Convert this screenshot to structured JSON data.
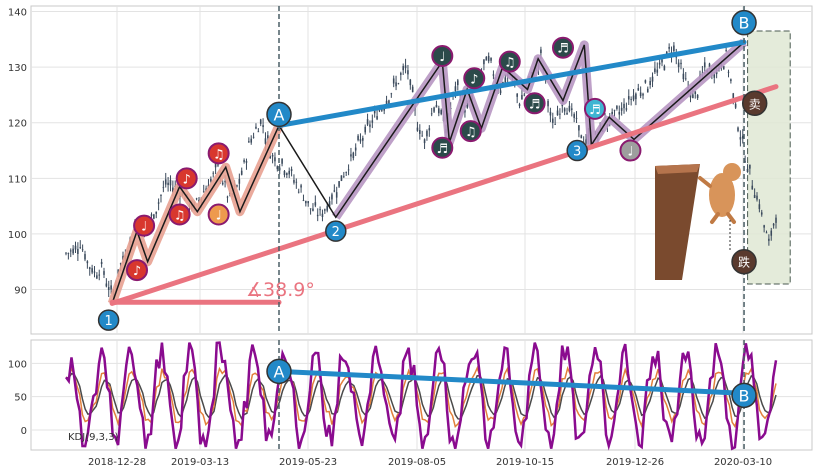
{
  "chart_data": [
    {
      "type": "candlestick",
      "panel": "price",
      "y_ticks": [
        90,
        100,
        110,
        120,
        130,
        140
      ],
      "ylim": [
        82,
        141
      ],
      "x_ticks": [
        "2018-12-28",
        "2019-03-13",
        "2019-05-23",
        "2019-08-05",
        "2019-10-15",
        "2019-12-26",
        "2020-03-10"
      ],
      "price_series": [
        {
          "t": 0.0,
          "v": 96.5
        },
        {
          "t": 0.01,
          "v": 97.0
        },
        {
          "t": 0.02,
          "v": 98.5
        },
        {
          "t": 0.03,
          "v": 95.0
        },
        {
          "t": 0.04,
          "v": 93.0
        },
        {
          "t": 0.05,
          "v": 94.0
        },
        {
          "t": 0.06,
          "v": 90.5
        },
        {
          "t": 0.065,
          "v": 88.5
        },
        {
          "t": 0.075,
          "v": 94.0
        },
        {
          "t": 0.09,
          "v": 98.0
        },
        {
          "t": 0.1,
          "v": 102.0
        },
        {
          "t": 0.11,
          "v": 100.0
        },
        {
          "t": 0.125,
          "v": 104.0
        },
        {
          "t": 0.14,
          "v": 109.0
        },
        {
          "t": 0.16,
          "v": 108.0
        },
        {
          "t": 0.18,
          "v": 104.5
        },
        {
          "t": 0.2,
          "v": 109.0
        },
        {
          "t": 0.215,
          "v": 112.0
        },
        {
          "t": 0.23,
          "v": 106.0
        },
        {
          "t": 0.245,
          "v": 109.5
        },
        {
          "t": 0.26,
          "v": 117.0
        },
        {
          "t": 0.275,
          "v": 120.5
        },
        {
          "t": 0.29,
          "v": 114.0
        },
        {
          "t": 0.31,
          "v": 112.0
        },
        {
          "t": 0.33,
          "v": 108.0
        },
        {
          "t": 0.345,
          "v": 104.5
        },
        {
          "t": 0.36,
          "v": 103.5
        },
        {
          "t": 0.38,
          "v": 108.0
        },
        {
          "t": 0.4,
          "v": 113.0
        },
        {
          "t": 0.42,
          "v": 118.0
        },
        {
          "t": 0.44,
          "v": 122.0
        },
        {
          "t": 0.46,
          "v": 126.0
        },
        {
          "t": 0.48,
          "v": 130.0
        },
        {
          "t": 0.495,
          "v": 120.0
        },
        {
          "t": 0.505,
          "v": 116.5
        },
        {
          "t": 0.52,
          "v": 124.0
        },
        {
          "t": 0.535,
          "v": 119.0
        },
        {
          "t": 0.55,
          "v": 127.0
        },
        {
          "t": 0.565,
          "v": 122.0
        },
        {
          "t": 0.58,
          "v": 128.0
        },
        {
          "t": 0.595,
          "v": 131.5
        },
        {
          "t": 0.61,
          "v": 126.0
        },
        {
          "t": 0.625,
          "v": 129.0
        },
        {
          "t": 0.64,
          "v": 123.5
        },
        {
          "t": 0.655,
          "v": 128.0
        },
        {
          "t": 0.67,
          "v": 132.0
        },
        {
          "t": 0.685,
          "v": 119.0
        },
        {
          "t": 0.7,
          "v": 124.0
        },
        {
          "t": 0.715,
          "v": 121.0
        },
        {
          "t": 0.73,
          "v": 116.5
        },
        {
          "t": 0.745,
          "v": 117.0
        },
        {
          "t": 0.76,
          "v": 120.0
        },
        {
          "t": 0.78,
          "v": 122.0
        },
        {
          "t": 0.8,
          "v": 125.0
        },
        {
          "t": 0.82,
          "v": 127.0
        },
        {
          "t": 0.84,
          "v": 130.5
        },
        {
          "t": 0.855,
          "v": 134.0
        },
        {
          "t": 0.87,
          "v": 128.0
        },
        {
          "t": 0.885,
          "v": 124.0
        },
        {
          "t": 0.9,
          "v": 130.0
        },
        {
          "t": 0.915,
          "v": 129.0
        },
        {
          "t": 0.93,
          "v": 132.0
        },
        {
          "t": 0.945,
          "v": 121.0
        },
        {
          "t": 0.96,
          "v": 112.0
        },
        {
          "t": 0.975,
          "v": 106.0
        },
        {
          "t": 0.99,
          "v": 98.0
        },
        {
          "t": 1.0,
          "v": 104.0
        }
      ],
      "zigzag": [
        {
          "t": 0.065,
          "v": 87.5
        },
        {
          "t": 0.1,
          "v": 100.5
        },
        {
          "t": 0.115,
          "v": 95.0
        },
        {
          "t": 0.16,
          "v": 108.5
        },
        {
          "t": 0.185,
          "v": 104.0
        },
        {
          "t": 0.225,
          "v": 112.0
        },
        {
          "t": 0.245,
          "v": 104.0
        },
        {
          "t": 0.3,
          "v": 119.5
        },
        {
          "t": 0.38,
          "v": 103.0
        },
        {
          "t": 0.53,
          "v": 131.0
        },
        {
          "t": 0.54,
          "v": 116.5
        },
        {
          "t": 0.565,
          "v": 126.0
        },
        {
          "t": 0.585,
          "v": 119.0
        },
        {
          "t": 0.615,
          "v": 130.0
        },
        {
          "t": 0.65,
          "v": 126.0
        },
        {
          "t": 0.665,
          "v": 131.5
        },
        {
          "t": 0.7,
          "v": 124.0
        },
        {
          "t": 0.73,
          "v": 134.0
        },
        {
          "t": 0.74,
          "v": 116.0
        },
        {
          "t": 0.765,
          "v": 121.0
        },
        {
          "t": 0.8,
          "v": 117.0
        },
        {
          "t": 0.955,
          "v": 134.5
        }
      ],
      "zigzag_highlight_segments": [
        [
          0,
          7,
          "#e8a191"
        ],
        [
          8,
          19,
          "#b796c2"
        ],
        [
          19,
          21,
          "#b796c2"
        ]
      ],
      "lines": [
        {
          "from": [
            0.065,
            87.5
          ],
          "to": [
            1.0,
            126.5
          ],
          "color": "#ea7480",
          "width": 5
        },
        {
          "from": [
            0.3,
            119.5
          ],
          "to": [
            0.955,
            134.5
          ],
          "color": "#2289c8",
          "width": 5
        },
        {
          "from": [
            0.065,
            87.7
          ],
          "to": [
            0.3,
            87.7
          ],
          "color": "#ea7480",
          "width": 5
        }
      ],
      "angle_label": {
        "text": "∡38.9°",
        "color": "#ea7480"
      },
      "pattern_points": [
        {
          "label": "1",
          "t": 0.06,
          "v": 84.5,
          "color": "#2289c8"
        },
        {
          "label": "A",
          "t": 0.3,
          "v": 121.5,
          "color": "#2289c8"
        },
        {
          "label": "2",
          "t": 0.38,
          "v": 100.5,
          "color": "#2289c8"
        },
        {
          "label": "3",
          "t": 0.72,
          "v": 115.0,
          "color": "#2289c8"
        },
        {
          "label": "B",
          "t": 0.955,
          "v": 138.0,
          "color": "#2289c8"
        }
      ],
      "note_badges": [
        {
          "glyph": "♪",
          "t": 0.1,
          "v": 93.5,
          "color": "#d8372e"
        },
        {
          "glyph": "♩",
          "t": 0.11,
          "v": 101.5,
          "color": "#d8372e"
        },
        {
          "glyph": "♫",
          "t": 0.16,
          "v": 103.5,
          "color": "#d8372e"
        },
        {
          "glyph": "♪",
          "t": 0.17,
          "v": 110.0,
          "color": "#d8372e"
        },
        {
          "glyph": "♫",
          "t": 0.215,
          "v": 114.5,
          "color": "#d8372e"
        },
        {
          "glyph": "♩",
          "t": 0.215,
          "v": 103.5,
          "color": "#ee9a4d"
        },
        {
          "glyph": "♩",
          "t": 0.53,
          "v": 132.0,
          "color": "#2b4a4a"
        },
        {
          "glyph": "♬",
          "t": 0.53,
          "v": 115.5,
          "color": "#2b4a4a"
        },
        {
          "glyph": "♪",
          "t": 0.575,
          "v": 128.0,
          "color": "#2b4a4a"
        },
        {
          "glyph": "♫",
          "t": 0.57,
          "v": 118.5,
          "color": "#2b4a4a"
        },
        {
          "glyph": "♫",
          "t": 0.625,
          "v": 131.0,
          "color": "#2b4a4a"
        },
        {
          "glyph": "♬",
          "t": 0.66,
          "v": 123.5,
          "color": "#2b4a4a"
        },
        {
          "glyph": "♬",
          "t": 0.7,
          "v": 133.5,
          "color": "#2b4a4a"
        },
        {
          "glyph": "♬",
          "t": 0.745,
          "v": 122.5,
          "color": "#3fb5d2"
        },
        {
          "glyph": "♩",
          "t": 0.795,
          "v": 115.0,
          "color": "#9e9e9e"
        }
      ],
      "side_badges": [
        {
          "glyph": "卖",
          "t": 0.97,
          "v": 123.5
        },
        {
          "glyph": "跌",
          "t": 0.955,
          "v": 95.0
        }
      ],
      "vlines": [
        0.3,
        0.955
      ],
      "shaded_box": {
        "t0": 0.96,
        "t1": 1.02,
        "v0": 91.0,
        "v1": 136.5
      }
    },
    {
      "type": "line",
      "panel": "indicator",
      "label": "KDJ(9,3,3)",
      "y_ticks": [
        0,
        50,
        100
      ],
      "ylim": [
        -30,
        135
      ],
      "series_colors": [
        "#8a0b8f",
        "#e2813c",
        "#4a4a4a"
      ],
      "line": {
        "from": [
          0.3,
          88.0
        ],
        "to": [
          0.955,
          55.0
        ],
        "color": "#2289c8"
      },
      "points": [
        {
          "label": "A",
          "t": 0.3,
          "v": 88.0
        },
        {
          "label": "B",
          "t": 0.955,
          "v": 52.0
        }
      ]
    }
  ]
}
